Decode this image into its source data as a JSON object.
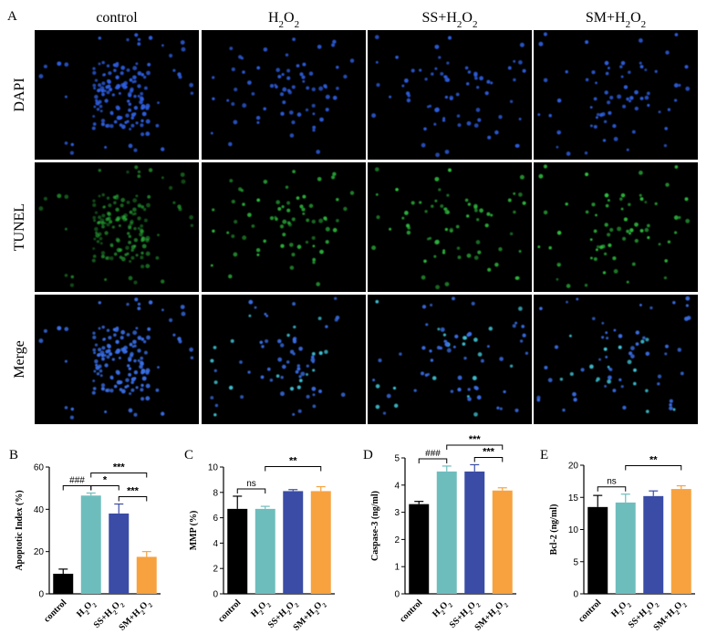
{
  "figure": {
    "panel_a_letter": "A",
    "columns": [
      {
        "pre": "control",
        "sub": "",
        "post": ""
      },
      {
        "pre": "H",
        "sub": "2",
        "post": "O",
        "sub2": "2"
      },
      {
        "pre": "SS+H",
        "sub": "2",
        "post": "O",
        "sub2": "2"
      },
      {
        "pre": "SM+H",
        "sub": "2",
        "post": "O",
        "sub2": "2"
      }
    ],
    "rows": [
      "DAPI",
      "TUNEL",
      "Merge"
    ],
    "microscopy": {
      "dapi_color": "#2f5fe0",
      "tunel_color": "#2fbf3f",
      "merge_color": "#3a70e8",
      "merge_teal": "#3fc4d6",
      "background": "#000000"
    }
  },
  "chart_data": [
    {
      "type": "bar",
      "panel": "B",
      "ylabel": "Apoptotic Index (%)",
      "ylim": [
        0,
        60
      ],
      "yticks": [
        "0",
        "20",
        "40",
        "60"
      ],
      "categories": [
        "control",
        "H2O2",
        "SS+H2O2",
        "SM+H2O2"
      ],
      "values": [
        9.5,
        46.5,
        38,
        17.5
      ],
      "errors": [
        2.2,
        1.2,
        4.5,
        2.5
      ],
      "colors": [
        "#000000",
        "#6ebdbd",
        "#3a4ca6",
        "#f7a23f"
      ],
      "annotations": [
        {
          "from": 0,
          "to": 1,
          "text": "###"
        },
        {
          "from": 1,
          "to": 2,
          "text": "*"
        },
        {
          "from": 2,
          "to": 3,
          "text": "***"
        },
        {
          "from": 1,
          "to": 3,
          "text": "***"
        }
      ]
    },
    {
      "type": "bar",
      "panel": "C",
      "ylabel": "MMP (%)",
      "ylim": [
        0,
        10
      ],
      "yticks": [
        "0",
        "2",
        "4",
        "6",
        "8",
        "10"
      ],
      "categories": [
        "control",
        "H2O2",
        "SS+H2O2",
        "SM+H2O2"
      ],
      "values": [
        6.7,
        6.7,
        8.1,
        8.1
      ],
      "errors": [
        1.0,
        0.2,
        0.12,
        0.35
      ],
      "colors": [
        "#000000",
        "#6ebdbd",
        "#3a4ca6",
        "#f7a23f"
      ],
      "annotations": [
        {
          "from": 0,
          "to": 1,
          "text": "ns"
        },
        {
          "from": 1,
          "to": 3,
          "text": "**"
        }
      ]
    },
    {
      "type": "bar",
      "panel": "D",
      "ylabel": "Caspase-3 (ng/ml)",
      "ylim": [
        0,
        5
      ],
      "yticks": [
        "0",
        "1",
        "2",
        "3",
        "4",
        "5"
      ],
      "categories": [
        "control",
        "H2O2",
        "SS+H2O2",
        "SM+H2O2"
      ],
      "values": [
        3.3,
        4.5,
        4.5,
        3.8
      ],
      "errors": [
        0.1,
        0.2,
        0.25,
        0.1
      ],
      "colors": [
        "#000000",
        "#6ebdbd",
        "#3a4ca6",
        "#f7a23f"
      ],
      "annotations": [
        {
          "from": 0,
          "to": 1,
          "text": "###"
        },
        {
          "from": 2,
          "to": 3,
          "text": "***"
        },
        {
          "from": 1,
          "to": 3,
          "text": "***"
        }
      ]
    },
    {
      "type": "bar",
      "panel": "E",
      "ylabel": "Bcl-2 (ng/ml)",
      "ylim": [
        0,
        20
      ],
      "yticks": [
        "0",
        "5",
        "10",
        "15",
        "20"
      ],
      "categories": [
        "control",
        "H2O2",
        "SS+H2O2",
        "SM+H2O2"
      ],
      "values": [
        13.5,
        14.2,
        15.2,
        16.3
      ],
      "errors": [
        1.8,
        1.3,
        0.8,
        0.5
      ],
      "colors": [
        "#000000",
        "#6ebdbd",
        "#3a4ca6",
        "#f7a23f"
      ],
      "annotations": [
        {
          "from": 0,
          "to": 1,
          "text": "ns"
        },
        {
          "from": 1,
          "to": 3,
          "text": "**"
        }
      ]
    }
  ]
}
